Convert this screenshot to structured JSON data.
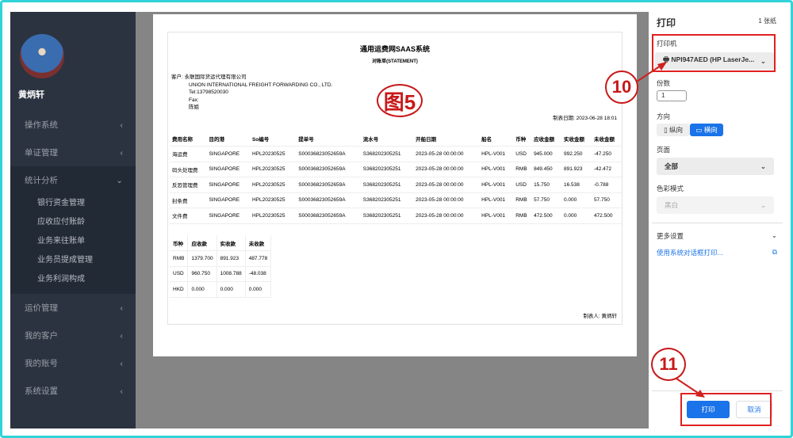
{
  "sidebar": {
    "username": "黄炳轩",
    "items": [
      {
        "label": "操作系统"
      },
      {
        "label": "单证管理"
      },
      {
        "label": "统计分析"
      },
      {
        "label": "运价管理"
      },
      {
        "label": "我的客户"
      },
      {
        "label": "我的账号"
      },
      {
        "label": "系统设置"
      }
    ],
    "subitems": [
      "银行资金管理",
      "应收应付账龄",
      "业务来往账单",
      "业务员提成管理",
      "业务利润构成"
    ]
  },
  "doc": {
    "title": "通用运费网SAAS系统",
    "subtitle": "对账单(STATEMENT)",
    "customer_label": "客户:",
    "customer_cn": "永联国际货运代理有限公司",
    "customer_en": "UNION INTERNATIONAL FREIGHT FORWARDING CO., LTD.",
    "tel": "Tel:13798520030",
    "fax": "Fax:",
    "contact": "陈姐",
    "date": "制表日期: 2023-06-28 18:01",
    "headers": [
      "费用名称",
      "目的港",
      "So编号",
      "提单号",
      "流水号",
      "开船日期",
      "船名",
      "币种",
      "应收金额",
      "实收金额",
      "未收金额"
    ],
    "rows": [
      [
        "海运费",
        "SINGAPORE",
        "HPL20230525",
        "S00036823052659A",
        "S368202305251",
        "2023-05-28 00:00:00",
        "HPL-V001",
        "USD",
        "945.000",
        "992.250",
        "-47.250"
      ],
      [
        "码头处理费",
        "SINGAPORE",
        "HPL20230525",
        "S00036823052659A",
        "S368202305251",
        "2023-05-28 00:00:00",
        "HPL-V001",
        "RMB",
        "849.450",
        "891.923",
        "-42.472"
      ],
      [
        "反恐管理费",
        "SINGAPORE",
        "HPL20230525",
        "S00036823052659A",
        "S368202305251",
        "2023-05-28 00:00:00",
        "HPL-V001",
        "USD",
        "15.750",
        "16.538",
        "-0.788"
      ],
      [
        "封条费",
        "SINGAPORE",
        "HPL20230525",
        "S00036823052659A",
        "S368202305251",
        "2023-05-28 00:00:00",
        "HPL-V001",
        "RMB",
        "57.750",
        "0.000",
        "57.750"
      ],
      [
        "文件费",
        "SINGAPORE",
        "HPL20230525",
        "S00036823052659A",
        "S368202305251",
        "2023-05-28 00:00:00",
        "HPL-V001",
        "RMB",
        "472.500",
        "0.000",
        "472.500"
      ]
    ],
    "sum_headers": [
      "币种",
      "应收款",
      "实收款",
      "未收款"
    ],
    "sum_rows": [
      [
        "RMB",
        "1379.700",
        "891.923",
        "487.778"
      ],
      [
        "USD",
        "960.750",
        "1008.788",
        "-48.038"
      ],
      [
        "HKD",
        "0.000",
        "0.000",
        "0.000"
      ]
    ],
    "maker": "制表人: 黄炳轩"
  },
  "print": {
    "title": "打印",
    "sheets": "1 张纸",
    "printer_label": "打印机",
    "printer": "NPI947AED (HP LaserJe...",
    "copies_label": "份数",
    "copies": "1",
    "orientation_label": "方向",
    "portrait": "纵向",
    "landscape": "横向",
    "pages_label": "页面",
    "pages": "全部",
    "color_label": "色彩模式",
    "color": "黑白",
    "more": "更多设置",
    "system_dialog": "使用系统对话框打印...",
    "print_btn": "打印",
    "cancel_btn": "取消",
    "accent": "#1a73e8"
  },
  "annotations": {
    "fig": "图5",
    "step10": "10",
    "step11": "11"
  }
}
